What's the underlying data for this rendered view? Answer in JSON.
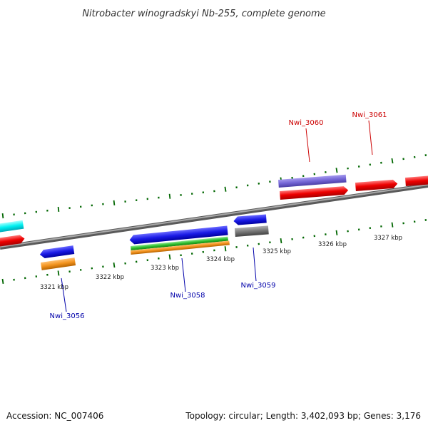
{
  "title": "Nitrobacter winogradskyi Nb-255, complete genome",
  "footer": {
    "accession": "Accession: NC_007406",
    "summary": "Topology: circular; Length: 3,402,093 bp; Genes: 3,176"
  },
  "colors": {
    "forward_label": "#cc0000",
    "reverse_label": "#0000aa",
    "tick": "#006600",
    "backbone": "#777777"
  },
  "chart_data": {
    "type": "genome-map",
    "scale_labels": [
      "3321 kbp",
      "3322 kbp",
      "3323 kbp",
      "3324 kbp",
      "3325 kbp",
      "3326 kbp",
      "3327 kbp"
    ],
    "gene_labels": [
      {
        "name": "Nwi_3060",
        "strand": "forward"
      },
      {
        "name": "Nwi_3061",
        "strand": "forward"
      },
      {
        "name": "Nwi_3056",
        "strand": "reverse"
      },
      {
        "name": "Nwi_3058",
        "strand": "reverse"
      },
      {
        "name": "Nwi_3059",
        "strand": "reverse"
      }
    ]
  }
}
